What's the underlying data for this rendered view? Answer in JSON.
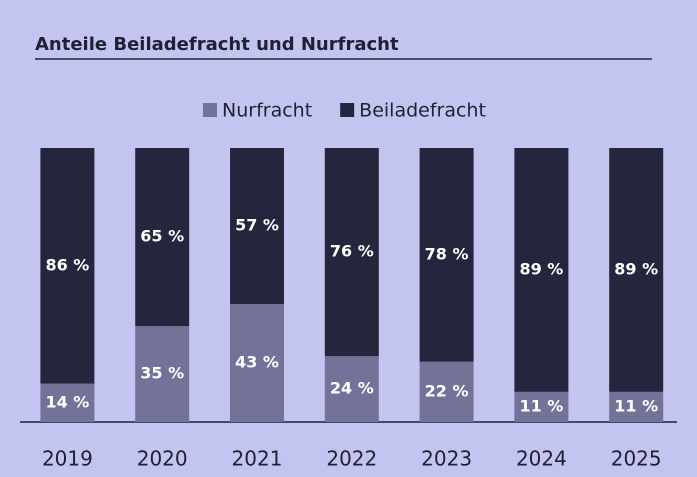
{
  "chart_data": {
    "type": "stacked_bar",
    "title": "Anteile Beiladefracht und Nurfracht",
    "categories": [
      "2019",
      "2020",
      "2021",
      "2022",
      "2023",
      "2024",
      "2025"
    ],
    "series": [
      {
        "name": "Nurfracht",
        "color": "#737399",
        "values": [
          14,
          35,
          43,
          24,
          22,
          11,
          11
        ],
        "value_labels": [
          "14 %",
          "35 %",
          "43 %",
          "24 %",
          "22 %",
          "11 %",
          "11 %"
        ]
      },
      {
        "name": "Beiladefracht",
        "color": "#24263d",
        "values": [
          86,
          65,
          57,
          76,
          78,
          89,
          89
        ],
        "value_labels": [
          "86 %",
          "65 %",
          "57 %",
          "76 %",
          "78 %",
          "89 %",
          "89 %"
        ]
      }
    ],
    "ylim": [
      0,
      100
    ]
  }
}
